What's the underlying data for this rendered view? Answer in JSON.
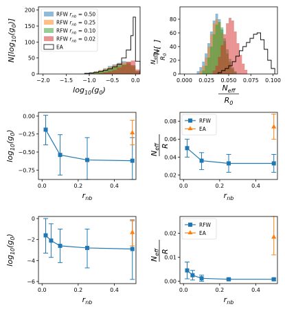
{
  "colors": {
    "rfw_050": "#1f77b4",
    "rfw_025": "#ff7f0e",
    "rfw_010": "#2ca02c",
    "rfw_002": "#d62728",
    "ea": "#000000",
    "rfw": "#1f77b4",
    "ea_marker": "#ff7f0e"
  },
  "chart_data": [
    {
      "id": "p1",
      "type": "histogram",
      "xlabel": "log10(g0)",
      "ylabel": "N[log10(g0)]",
      "xlim": [
        -2.1,
        0.1
      ],
      "ylim": [
        0,
        210
      ],
      "xticks": [
        -2.0,
        -1.5,
        -1.0,
        -0.5,
        0.0
      ],
      "xtick_labels": [
        "−2.0",
        "−1.5",
        "−1.0",
        "−0.5",
        "0.0"
      ],
      "yticks": [
        0,
        50,
        100,
        150,
        200
      ],
      "legend_position": "top-left",
      "series": [
        {
          "name": "RFW r_nb = 0.50",
          "color_key": "rfw_050",
          "style": "fill",
          "bins": [
            [
              -1.2,
              1
            ],
            [
              -1.1,
              3
            ],
            [
              -1.0,
              5
            ],
            [
              -0.9,
              8
            ],
            [
              -0.8,
              12
            ],
            [
              -0.7,
              18
            ],
            [
              -0.6,
              25
            ],
            [
              -0.5,
              30
            ],
            [
              -0.4,
              35
            ],
            [
              -0.3,
              40
            ],
            [
              -0.2,
              38
            ],
            [
              -0.1,
              28
            ],
            [
              0.0,
              10
            ]
          ]
        },
        {
          "name": "RFW r_nb = 0.25",
          "color_key": "rfw_025",
          "style": "fill",
          "bins": [
            [
              -1.1,
              2
            ],
            [
              -1.0,
              4
            ],
            [
              -0.9,
              8
            ],
            [
              -0.8,
              12
            ],
            [
              -0.7,
              16
            ],
            [
              -0.6,
              22
            ],
            [
              -0.5,
              28
            ],
            [
              -0.4,
              32
            ],
            [
              -0.3,
              36
            ],
            [
              -0.2,
              36
            ],
            [
              -0.1,
              26
            ],
            [
              0.0,
              8
            ]
          ]
        },
        {
          "name": "RFW r_nb = 0.10",
          "color_key": "rfw_010",
          "style": "fill",
          "bins": [
            [
              -1.0,
              2
            ],
            [
              -0.9,
              5
            ],
            [
              -0.8,
              8
            ],
            [
              -0.7,
              12
            ],
            [
              -0.6,
              18
            ],
            [
              -0.5,
              22
            ],
            [
              -0.4,
              26
            ],
            [
              -0.3,
              30
            ],
            [
              -0.2,
              32
            ],
            [
              -0.1,
              24
            ],
            [
              0.0,
              8
            ]
          ]
        },
        {
          "name": "RFW r_nb = 0.02",
          "color_key": "rfw_002",
          "style": "fill",
          "bins": [
            [
              -0.8,
              2
            ],
            [
              -0.7,
              5
            ],
            [
              -0.6,
              8
            ],
            [
              -0.5,
              12
            ],
            [
              -0.4,
              20
            ],
            [
              -0.3,
              28
            ],
            [
              -0.2,
              38
            ],
            [
              -0.1,
              42
            ],
            [
              0.0,
              14
            ]
          ]
        },
        {
          "name": "EA",
          "color_key": "ea",
          "style": "step",
          "bins": [
            [
              -1.1,
              2
            ],
            [
              -1.0,
              3
            ],
            [
              -0.9,
              5
            ],
            [
              -0.8,
              8
            ],
            [
              -0.7,
              12
            ],
            [
              -0.6,
              16
            ],
            [
              -0.5,
              22
            ],
            [
              -0.4,
              30
            ],
            [
              -0.3,
              50
            ],
            [
              -0.2,
              75
            ],
            [
              -0.1,
              120
            ],
            [
              -0.05,
              178
            ],
            [
              0.0,
              40
            ]
          ]
        }
      ]
    },
    {
      "id": "p2",
      "type": "histogram",
      "xlabel": "N_eff / R_0",
      "ylabel": "N[N_eff / R_0]",
      "xlim": [
        -0.005,
        0.105
      ],
      "ylim": [
        0,
        98
      ],
      "xticks": [
        0.0,
        0.025,
        0.05,
        0.075,
        0.1
      ],
      "xtick_labels": [
        "0.000",
        "0.025",
        "0.050",
        "0.075",
        "0.100"
      ],
      "yticks": [
        0,
        20,
        40,
        60,
        80
      ],
      "series": [
        {
          "name": "RFW r_nb = 0.50",
          "color_key": "rfw_050",
          "style": "fill",
          "bins": [
            [
              0.014,
              4
            ],
            [
              0.017,
              10
            ],
            [
              0.02,
              18
            ],
            [
              0.023,
              30
            ],
            [
              0.026,
              45
            ],
            [
              0.029,
              62
            ],
            [
              0.032,
              78
            ],
            [
              0.035,
              88
            ],
            [
              0.038,
              80
            ],
            [
              0.041,
              65
            ],
            [
              0.044,
              48
            ],
            [
              0.047,
              30
            ],
            [
              0.05,
              18
            ],
            [
              0.053,
              8
            ],
            [
              0.056,
              3
            ]
          ]
        },
        {
          "name": "RFW r_nb = 0.25",
          "color_key": "rfw_025",
          "style": "fill",
          "bins": [
            [
              0.017,
              5
            ],
            [
              0.02,
              12
            ],
            [
              0.023,
              24
            ],
            [
              0.026,
              40
            ],
            [
              0.029,
              58
            ],
            [
              0.032,
              74
            ],
            [
              0.035,
              80
            ],
            [
              0.038,
              75
            ],
            [
              0.041,
              60
            ],
            [
              0.044,
              44
            ],
            [
              0.047,
              28
            ],
            [
              0.05,
              15
            ],
            [
              0.053,
              6
            ]
          ]
        },
        {
          "name": "RFW r_nb = 0.10",
          "color_key": "rfw_010",
          "style": "fill",
          "bins": [
            [
              0.02,
              5
            ],
            [
              0.023,
              12
            ],
            [
              0.026,
              24
            ],
            [
              0.029,
              40
            ],
            [
              0.032,
              58
            ],
            [
              0.035,
              72
            ],
            [
              0.038,
              76
            ],
            [
              0.041,
              68
            ],
            [
              0.044,
              52
            ],
            [
              0.047,
              36
            ],
            [
              0.05,
              22
            ],
            [
              0.053,
              10
            ],
            [
              0.056,
              4
            ]
          ]
        },
        {
          "name": "RFW r_nb = 0.02",
          "color_key": "rfw_002",
          "style": "fill",
          "bins": [
            [
              0.032,
              5
            ],
            [
              0.035,
              12
            ],
            [
              0.038,
              25
            ],
            [
              0.041,
              42
            ],
            [
              0.044,
              58
            ],
            [
              0.047,
              74
            ],
            [
              0.05,
              82
            ],
            [
              0.053,
              78
            ],
            [
              0.056,
              62
            ],
            [
              0.059,
              45
            ],
            [
              0.062,
              28
            ],
            [
              0.065,
              15
            ],
            [
              0.068,
              6
            ]
          ]
        },
        {
          "name": "EA",
          "color_key": "ea",
          "style": "step",
          "bins": [
            [
              0.038,
              2
            ],
            [
              0.042,
              5
            ],
            [
              0.046,
              8
            ],
            [
              0.05,
              12
            ],
            [
              0.054,
              18
            ],
            [
              0.058,
              26
            ],
            [
              0.062,
              34
            ],
            [
              0.066,
              40
            ],
            [
              0.07,
              46
            ],
            [
              0.074,
              52
            ],
            [
              0.078,
              58
            ],
            [
              0.082,
              60
            ],
            [
              0.086,
              50
            ],
            [
              0.09,
              36
            ],
            [
              0.094,
              20
            ],
            [
              0.098,
              8
            ]
          ]
        }
      ]
    },
    {
      "id": "p3",
      "type": "line",
      "xlabel": "r_nb",
      "ylabel": "log10(g0)",
      "xlim": [
        -0.02,
        0.52
      ],
      "ylim": [
        -0.88,
        0.05
      ],
      "xticks": [
        0.0,
        0.2,
        0.4
      ],
      "xtick_labels": [
        "0.0",
        "0.2",
        "0.4"
      ],
      "yticks": [
        0.0,
        -0.25,
        -0.5,
        -0.75
      ],
      "ytick_labels": [
        "0.00",
        "−0.25",
        "−0.50",
        "−0.75"
      ],
      "series": [
        {
          "name": "RFW",
          "color_key": "rfw",
          "marker": "square",
          "connect": true,
          "points": [
            {
              "x": 0.02,
              "y": -0.19,
              "lo": -0.4,
              "hi": 0.01
            },
            {
              "x": 0.1,
              "y": -0.54,
              "lo": -0.82,
              "hi": -0.26
            },
            {
              "x": 0.25,
              "y": -0.61,
              "lo": -0.92,
              "hi": -0.3
            },
            {
              "x": 0.5,
              "y": -0.62,
              "lo": -0.92,
              "hi": -0.3
            }
          ]
        },
        {
          "name": "EA",
          "color_key": "ea_marker",
          "marker": "triangle",
          "connect": false,
          "points": [
            {
              "x": 0.5,
              "y": -0.23,
              "lo": -0.4,
              "hi": -0.06
            }
          ]
        }
      ]
    },
    {
      "id": "p4",
      "type": "line",
      "xlabel": "r_nb",
      "ylabel": "N_eff / R",
      "xlim": [
        -0.02,
        0.52
      ],
      "ylim": [
        0.015,
        0.09
      ],
      "xticks": [
        0.0,
        0.2,
        0.4
      ],
      "xtick_labels": [
        "0.0",
        "0.2",
        "0.4"
      ],
      "yticks": [
        0.02,
        0.04,
        0.06,
        0.08
      ],
      "ytick_labels": [
        "0.02",
        "0.04",
        "0.06",
        "0.08"
      ],
      "legend_position": "top-left",
      "series": [
        {
          "name": "RFW",
          "color_key": "rfw",
          "marker": "square",
          "connect": true,
          "points": [
            {
              "x": 0.02,
              "y": 0.05,
              "lo": 0.04,
              "hi": 0.06
            },
            {
              "x": 0.1,
              "y": 0.036,
              "lo": 0.026,
              "hi": 0.045
            },
            {
              "x": 0.25,
              "y": 0.033,
              "lo": 0.023,
              "hi": 0.043
            },
            {
              "x": 0.5,
              "y": 0.033,
              "lo": 0.023,
              "hi": 0.043
            }
          ]
        },
        {
          "name": "EA",
          "color_key": "ea_marker",
          "marker": "triangle",
          "connect": false,
          "points": [
            {
              "x": 0.5,
              "y": 0.074,
              "lo": 0.06,
              "hi": 0.088
            }
          ]
        }
      ]
    },
    {
      "id": "p5",
      "type": "line",
      "xlabel": "r_nb",
      "ylabel": "log10(g0)",
      "xlim": [
        -0.02,
        0.52
      ],
      "ylim": [
        -6.2,
        0.2
      ],
      "xticks": [
        0.0,
        0.2,
        0.4
      ],
      "xtick_labels": [
        "0.0",
        "0.2",
        "0.4"
      ],
      "yticks": [
        0,
        -2,
        -4,
        -6
      ],
      "ytick_labels": [
        "0",
        "−2",
        "−4",
        "−6"
      ],
      "series": [
        {
          "name": "RFW",
          "color_key": "rfw",
          "marker": "square",
          "connect": true,
          "points": [
            {
              "x": 0.02,
              "y": -1.6,
              "lo": -3.3,
              "hi": 0.0
            },
            {
              "x": 0.05,
              "y": -2.1,
              "lo": -3.7,
              "hi": -0.5
            },
            {
              "x": 0.1,
              "y": -2.6,
              "lo": -4.2,
              "hi": -1.0
            },
            {
              "x": 0.25,
              "y": -2.8,
              "lo": -4.7,
              "hi": -1.0
            },
            {
              "x": 0.5,
              "y": -2.9,
              "lo": -5.8,
              "hi": -0.2
            }
          ]
        },
        {
          "name": "EA",
          "color_key": "ea_marker",
          "marker": "triangle",
          "connect": false,
          "points": [
            {
              "x": 0.5,
              "y": -1.3,
              "lo": -2.6,
              "hi": -0.1
            }
          ]
        }
      ]
    },
    {
      "id": "p6",
      "type": "line",
      "xlabel": "r_nb",
      "ylabel": "N_eff / R",
      "xlim": [
        -0.02,
        0.52
      ],
      "ylim": [
        -0.001,
        0.027
      ],
      "xticks": [
        0.0,
        0.2,
        0.4
      ],
      "xtick_labels": [
        "0.0",
        "0.2",
        "0.4"
      ],
      "yticks": [
        0.0,
        0.01,
        0.02
      ],
      "ytick_labels": [
        "0.00",
        "0.01",
        "0.02"
      ],
      "legend_position": "top-left",
      "series": [
        {
          "name": "RFW",
          "color_key": "rfw",
          "marker": "square",
          "connect": true,
          "points": [
            {
              "x": 0.02,
              "y": 0.0045,
              "lo": 0.001,
              "hi": 0.008
            },
            {
              "x": 0.05,
              "y": 0.0025,
              "lo": 0.0005,
              "hi": 0.0045
            },
            {
              "x": 0.1,
              "y": 0.0012,
              "lo": 0.0,
              "hi": 0.0025
            },
            {
              "x": 0.25,
              "y": 0.0008,
              "lo": 0.0004,
              "hi": 0.0012
            },
            {
              "x": 0.5,
              "y": 0.0008,
              "lo": 0.0004,
              "hi": 0.0012
            }
          ]
        },
        {
          "name": "EA",
          "color_key": "ea_marker",
          "marker": "triangle",
          "connect": false,
          "points": [
            {
              "x": 0.5,
              "y": 0.0185,
              "lo": 0.011,
              "hi": 0.027
            }
          ]
        }
      ]
    }
  ]
}
